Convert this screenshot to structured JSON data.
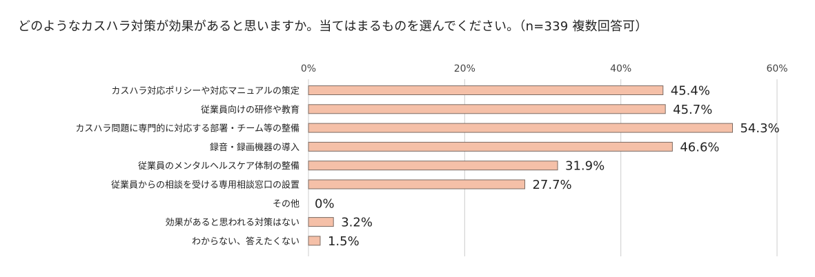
{
  "chart_data": {
    "type": "bar",
    "orientation": "horizontal",
    "title": "どのようなカスハラ対策が効果があると思いますか。当てはまるものを選んでください。（n=339 複数回答可）",
    "categories": [
      "カスハラ対応ポリシーや対応マニュアルの策定",
      "従業員向けの研修や教育",
      "カスハラ問題に専門的に対応する部署・チーム等の整備",
      "録音・録画機器の導入",
      "従業員のメンタルヘルスケア体制の整備",
      "従業員からの相談を受ける専用相談窓口の設置",
      "その他",
      "効果があると思われる対策はない",
      "わからない、答えたくない"
    ],
    "values": [
      45.4,
      45.7,
      54.3,
      46.6,
      31.9,
      27.7,
      0,
      3.2,
      1.5
    ],
    "value_labels": [
      "45.4%",
      "45.7%",
      "54.3%",
      "46.6%",
      "31.9%",
      "27.7%",
      "0%",
      "3.2%",
      "1.5%"
    ],
    "xlim": [
      0,
      60
    ],
    "xticks": [
      0,
      20,
      40,
      60
    ],
    "xtick_labels": [
      "0%",
      "20%",
      "40%",
      "60%"
    ],
    "grid": true,
    "legend": "none",
    "bar_color": "#f5c0a8",
    "bar_edge_color": "#7a6a62",
    "grid_color": "#cccccc"
  }
}
